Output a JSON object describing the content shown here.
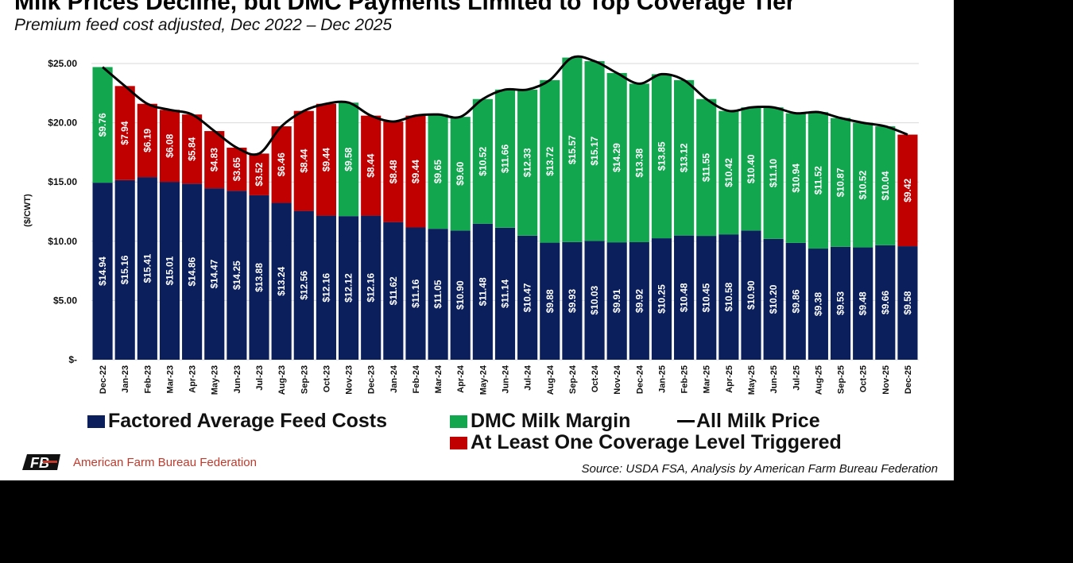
{
  "title": "Milk Prices Decline, but DMC Payments Limited to Top Coverage Tier",
  "subtitle": "Premium feed cost adjusted, Dec 2022 – Dec 2025",
  "source": "Source: USDA FSA, Analysis by American Farm Bureau Federation",
  "logo": {
    "letters": "FB",
    "text": "American Farm Bureau Federation"
  },
  "colors": {
    "feed": "#0b1f5c",
    "margin": "#12a64f",
    "triggered": "#c00000",
    "line": "#000000"
  },
  "legend": {
    "feed": "Factored Average Feed Costs",
    "margin": "DMC Milk Margin",
    "line": "All Milk Price",
    "triggered": "At Least One Coverage Level Triggered"
  },
  "chart_data": {
    "type": "bar",
    "stacked": true,
    "title": "Milk Prices Decline, but DMC Payments Limited to Top Coverage Tier",
    "ylabel": "($/CWT)",
    "ylim": [
      0,
      25
    ],
    "yticks": [
      "$-",
      "$5.00",
      "$10.00",
      "$15.00",
      "$20.00",
      "$25.00"
    ],
    "ytick_values": [
      0,
      5,
      10,
      15,
      20,
      25
    ],
    "grid": true,
    "legend_position": "bottom",
    "categories": [
      "Dec-22",
      "Jan-23",
      "Feb-23",
      "Mar-23",
      "Apr-23",
      "May-23",
      "Jun-23",
      "Jul-23",
      "Aug-23",
      "Sep-23",
      "Oct-23",
      "Nov-23",
      "Dec-23",
      "Jan-24",
      "Feb-24",
      "Mar-24",
      "Apr-24",
      "May-24",
      "Jun-24",
      "Jul-24",
      "Aug-24",
      "Sep-24",
      "Oct-24",
      "Nov-24",
      "Dec-24",
      "Jan-25",
      "Feb-25",
      "Mar-25",
      "Apr-25",
      "May-25",
      "Jun-25",
      "Jul-25",
      "Aug-25",
      "Sep-25",
      "Oct-25",
      "Nov-25",
      "Dec-25"
    ],
    "series": [
      {
        "name": "Factored Average Feed Costs",
        "values": [
          14.94,
          15.16,
          15.41,
          15.01,
          14.86,
          14.47,
          14.25,
          13.88,
          13.24,
          12.56,
          12.16,
          12.12,
          12.16,
          11.62,
          11.16,
          11.05,
          10.9,
          11.48,
          11.14,
          10.47,
          9.88,
          9.93,
          10.03,
          9.91,
          9.92,
          10.25,
          10.48,
          10.45,
          10.58,
          10.9,
          10.2,
          9.86,
          9.38,
          9.53,
          9.48,
          9.66,
          9.58
        ]
      },
      {
        "name": "DMC Milk Margin",
        "values": [
          9.76,
          7.94,
          6.19,
          6.08,
          5.84,
          4.83,
          3.65,
          3.52,
          6.46,
          8.44,
          9.44,
          9.58,
          8.44,
          8.48,
          9.44,
          9.65,
          9.6,
          10.52,
          11.66,
          12.33,
          13.72,
          15.57,
          15.17,
          14.29,
          13.38,
          13.85,
          13.12,
          11.55,
          10.42,
          10.4,
          11.1,
          10.94,
          11.52,
          10.87,
          10.52,
          10.04,
          9.42
        ]
      },
      {
        "name": "All Milk Price",
        "type": "line",
        "derived": "feed + margin"
      }
    ],
    "triggered": [
      false,
      true,
      true,
      true,
      true,
      true,
      true,
      true,
      true,
      true,
      true,
      false,
      true,
      true,
      true,
      false,
      false,
      false,
      false,
      false,
      false,
      false,
      false,
      false,
      false,
      false,
      false,
      false,
      false,
      false,
      false,
      false,
      false,
      false,
      false,
      false,
      true
    ]
  }
}
